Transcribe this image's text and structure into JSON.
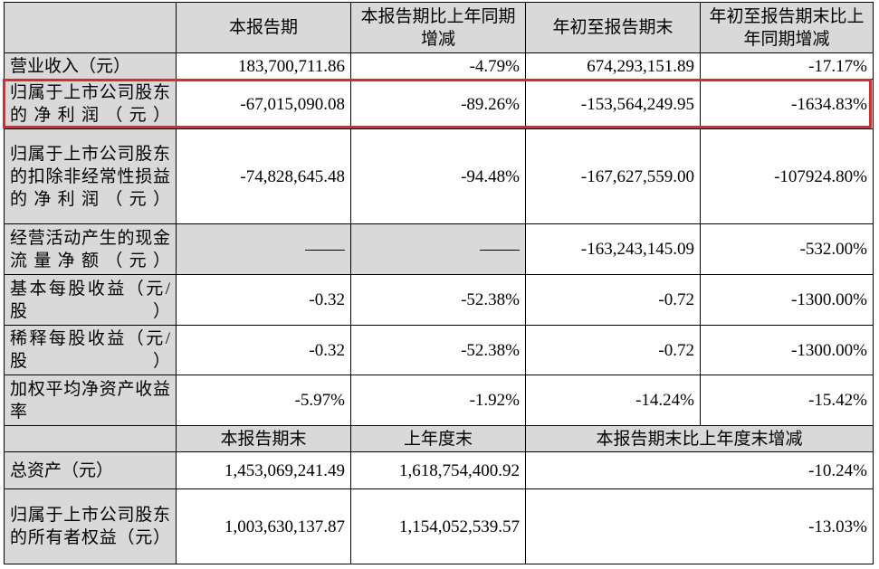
{
  "header": {
    "col1": "本报告期",
    "col2": "本报告期比上年同期增减",
    "col3": "年初至报告期末",
    "col4": "年初至报告期末比上年同期增减"
  },
  "rows": [
    {
      "label": "营业收入（元）",
      "v1": "183,700,711.86",
      "v2": "-4.79%",
      "v3": "674,293,151.89",
      "v4": "-17.17%"
    },
    {
      "label": "归属于上市公司股东的净利润（元）",
      "v1": "-67,015,090.08",
      "v2": "-89.26%",
      "v3": "-153,564,249.95",
      "v4": "-1634.83%"
    },
    {
      "label": "归属于上市公司股东的扣除非经常性损益的净利润（元）",
      "v1": "-74,828,645.48",
      "v2": "-94.48%",
      "v3": "-167,627,559.00",
      "v4": "-107924.80%"
    },
    {
      "label": "经营活动产生的现金流量净额（元）",
      "v1": "——",
      "v2": "——",
      "v3": "-163,243,145.09",
      "v4": "-532.00%"
    },
    {
      "label": "基本每股收益（元/股）",
      "v1": "-0.32",
      "v2": "-52.38%",
      "v3": "-0.72",
      "v4": "-1300.00%"
    },
    {
      "label": "稀释每股收益（元/股）",
      "v1": "-0.32",
      "v2": "-52.38%",
      "v3": "-0.72",
      "v4": "-1300.00%"
    },
    {
      "label": "加权平均净资产收益率",
      "v1": "-5.97%",
      "v2": "-1.92%",
      "v3": "-14.24%",
      "v4": "-15.42%"
    }
  ],
  "subheader": {
    "col1": "本报告期末",
    "col2": "上年度末",
    "col3": "本报告期末比上年度末增减"
  },
  "rows2": [
    {
      "label": "总资产（元）",
      "v1": "1,453,069,241.49",
      "v2": "1,618,754,400.92",
      "v3": "-10.24%"
    },
    {
      "label": "归属于上市公司股东的所有者权益（元）",
      "v1": "1,003,630,137.87",
      "v2": "1,154,052,539.57",
      "v3": "-13.03%"
    }
  ],
  "colors": {
    "highlight_border": "#e8262a",
    "header_bg": "#d9d9d9"
  }
}
